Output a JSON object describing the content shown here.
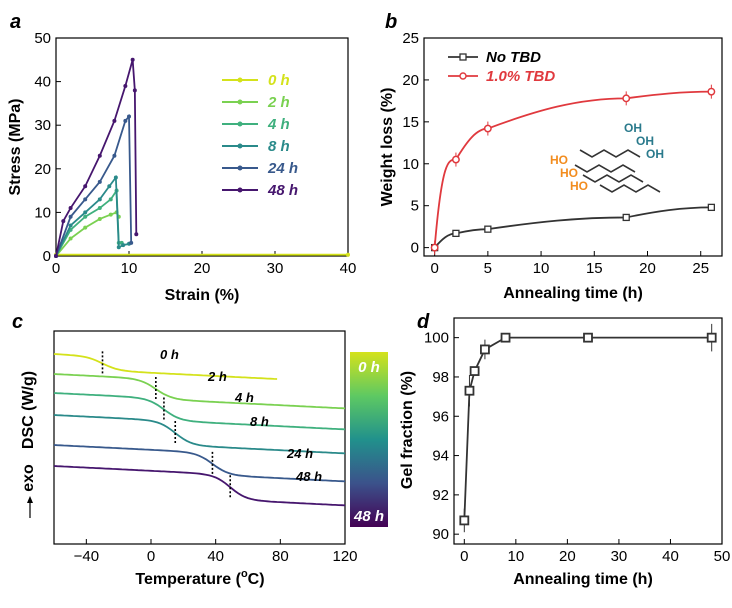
{
  "chart_data": [
    {
      "panel": "a",
      "type": "line",
      "xlabel": "Strain (%)",
      "ylabel": "Stress (MPa)",
      "xlim": [
        0,
        40
      ],
      "ylim": [
        0,
        50
      ],
      "xticks": [
        "0",
        "10",
        "20",
        "30",
        "40"
      ],
      "yticks": [
        "0",
        "10",
        "20",
        "30",
        "40",
        "50"
      ],
      "series": [
        {
          "name": "0 h",
          "color": "#d4e21b",
          "x": [
            0,
            40
          ],
          "y": [
            0.3,
            0.3
          ]
        },
        {
          "name": "2 h",
          "color": "#7ad151",
          "x": [
            0,
            2,
            4,
            6,
            7.5,
            8.3,
            8.6
          ],
          "y": [
            0,
            4,
            6.5,
            8.5,
            9.5,
            10,
            9
          ]
        },
        {
          "name": "4 h",
          "color": "#3fb07e",
          "x": [
            0,
            2,
            4,
            6,
            7.5,
            8.3,
            8.6,
            9
          ],
          "y": [
            0,
            6,
            9,
            11,
            13,
            15,
            3,
            3
          ]
        },
        {
          "name": "8 h",
          "color": "#2a8a8a",
          "x": [
            0,
            2,
            4,
            6,
            7.3,
            8.2,
            8.6,
            9.2,
            10
          ],
          "y": [
            0,
            7,
            10,
            13,
            16,
            18,
            2,
            2.5,
            2.8
          ]
        },
        {
          "name": "24 h",
          "color": "#38598c",
          "x": [
            0,
            2,
            4,
            6,
            8,
            9.5,
            10,
            10.3
          ],
          "y": [
            0,
            9,
            13,
            17,
            23,
            31,
            32,
            3
          ]
        },
        {
          "name": "48 h",
          "color": "#46166e",
          "x": [
            0,
            1,
            2,
            4,
            6,
            8,
            9.5,
            10.5,
            10.8,
            11
          ],
          "y": [
            0,
            8,
            11,
            16,
            23,
            31,
            39,
            45,
            38,
            5
          ]
        }
      ]
    },
    {
      "panel": "b",
      "type": "line",
      "xlabel": "Annealing time (h)",
      "ylabel": "Weight loss (%)",
      "xlim": [
        -1,
        27
      ],
      "ylim": [
        -1,
        25
      ],
      "xticks": [
        "0",
        "5",
        "10",
        "15",
        "20",
        "25"
      ],
      "yticks": [
        "0",
        "5",
        "10",
        "15",
        "20",
        "25"
      ],
      "series": [
        {
          "name": "No TBD",
          "color": "#333333",
          "x": [
            0,
            2,
            5,
            18,
            26
          ],
          "y": [
            0,
            1.7,
            2.2,
            3.6,
            4.8
          ]
        },
        {
          "name": "1.0% TBD",
          "color": "#e0393e",
          "x": [
            0,
            2,
            5,
            18,
            26
          ],
          "y": [
            0,
            10.5,
            14.2,
            17.8,
            18.6
          ]
        }
      ],
      "annotation": {
        "oh": "OH",
        "ho": "HO"
      }
    },
    {
      "panel": "c",
      "type": "line",
      "xlabel": "Temperature (",
      "xlabel_unit": "C)",
      "xlabel_deg": "o",
      "ylabel": "DSC (W/g)",
      "ylabel_prefix": "exo",
      "xlim": [
        -60,
        120
      ],
      "xticks": [
        "−40",
        "0",
        "40",
        "80",
        "120"
      ],
      "colorbar": {
        "top": "0 h",
        "bottom": "48 h"
      },
      "series": [
        {
          "name": "0 h",
          "color": "#d4e21b",
          "tg": -30
        },
        {
          "name": "2 h",
          "color": "#7ad151",
          "tg": 3
        },
        {
          "name": "4 h",
          "color": "#3fb07e",
          "tg": 8
        },
        {
          "name": "8 h",
          "color": "#2a8a8a",
          "tg": 15
        },
        {
          "name": "24 h",
          "color": "#38598c",
          "tg": 38
        },
        {
          "name": "48 h",
          "color": "#46166e",
          "tg": 49
        }
      ]
    },
    {
      "panel": "d",
      "type": "scatter",
      "xlabel": "Annealing time (h)",
      "ylabel": "Gel fraction (%)",
      "xlim": [
        -2,
        50
      ],
      "ylim": [
        89.5,
        101
      ],
      "xticks": [
        "0",
        "10",
        "20",
        "30",
        "40",
        "50"
      ],
      "yticks": [
        "90",
        "92",
        "94",
        "96",
        "98",
        "100"
      ],
      "x": [
        0,
        1,
        2,
        4,
        8,
        24,
        48
      ],
      "y": [
        90.7,
        97.3,
        98.3,
        99.4,
        100,
        100,
        100
      ]
    }
  ]
}
